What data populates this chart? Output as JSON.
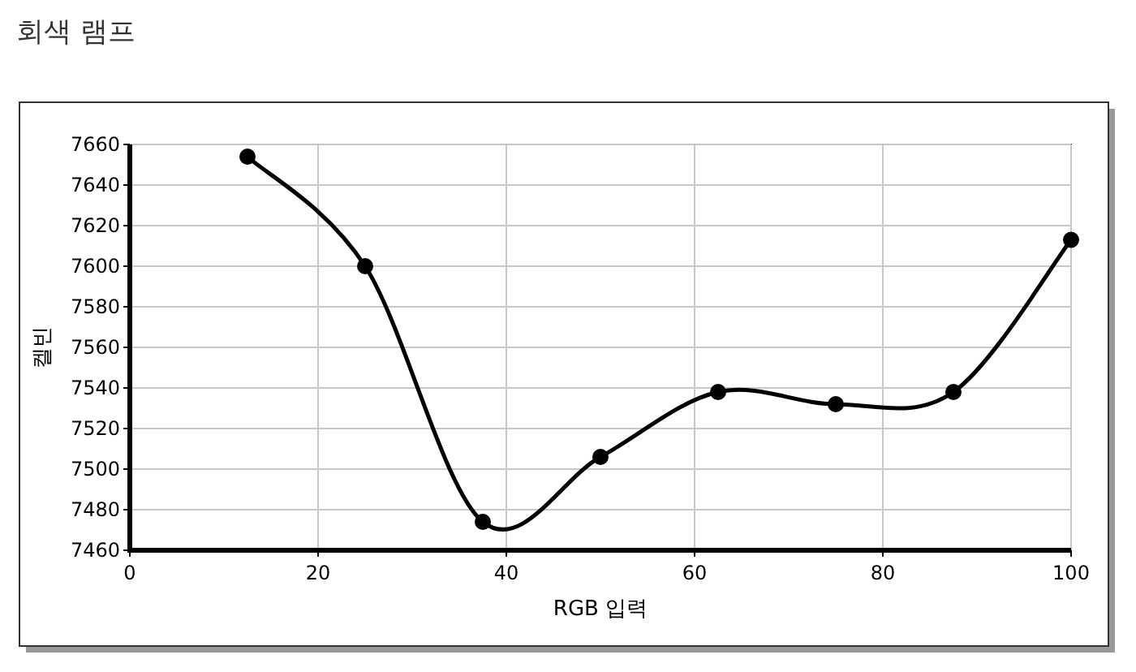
{
  "chart_data": {
    "type": "line",
    "title": "회색 램프",
    "xlabel": "RGB 입력",
    "ylabel": "켈빈",
    "x": [
      12.5,
      25,
      37.5,
      50,
      62.5,
      75,
      87.5,
      100
    ],
    "series": [
      {
        "color": "#000000",
        "values": [
          7654,
          7600,
          7474,
          7506,
          7538,
          7532,
          7538,
          7613
        ]
      }
    ],
    "xlim": [
      0,
      100
    ],
    "xticks": [
      0,
      20,
      40,
      60,
      80,
      100
    ],
    "ylim": [
      7460,
      7660
    ],
    "yticks": [
      7460,
      7480,
      7500,
      7520,
      7540,
      7560,
      7580,
      7600,
      7620,
      7640,
      7660
    ],
    "grid": true,
    "marker": "circle",
    "line_style": "solid"
  }
}
